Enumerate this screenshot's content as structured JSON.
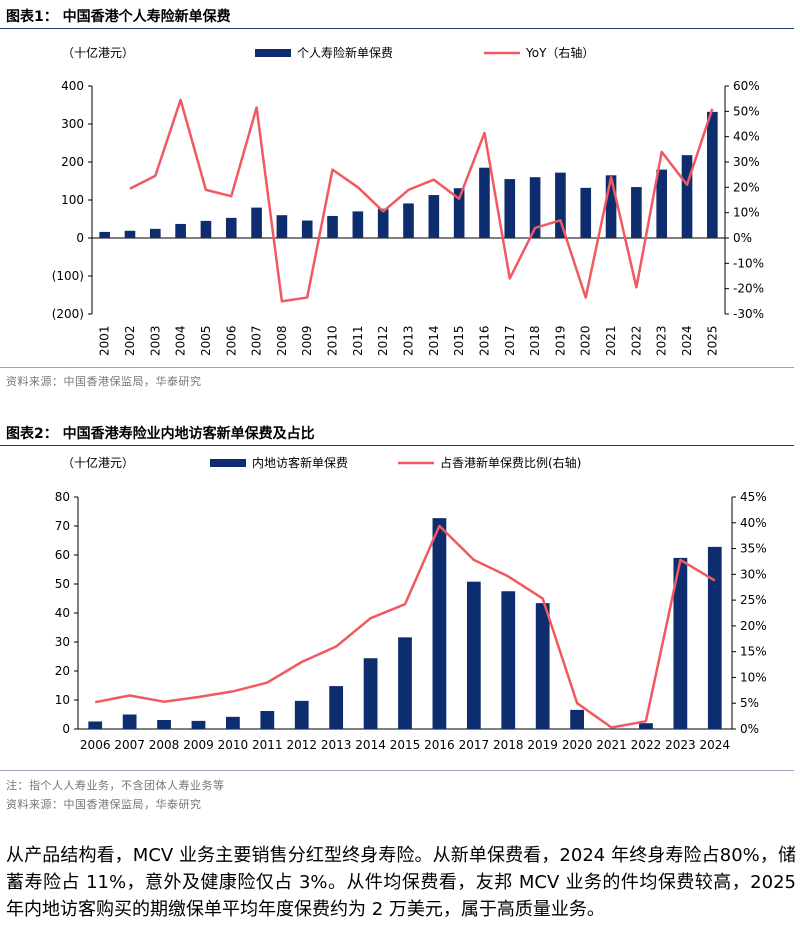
{
  "figure1": {
    "title": "图表1：  中国香港个人寿险新单保费",
    "source": "资料来源：中国香港保监局，华泰研究"
  },
  "figure2": {
    "title": "图表2：  中国香港寿险业内地访客新单保费及占比",
    "note": "注：指个人人寿业务，不含团体人寿业务等",
    "source": "资料来源：中国香港保监局，华泰研究"
  },
  "paragraph": "从产品结构看，MCV 业务主要销售分红型终身寿险。从新单保费看，2024 年终身寿险占80%，储蓄寿险占 11%，意外及健康险仅占 3%。从件均保费看，友邦 MCV 业务的件均保费较高，2025 年内地访客购买的期缴保单平均年度保费约为 2 万美元，属于高质量业务。",
  "chart_data": [
    {
      "type": "bar+line",
      "unit_label": "（十亿港元）",
      "categories": [
        "2001",
        "2002",
        "2003",
        "2004",
        "2005",
        "2006",
        "2007",
        "2008",
        "2009",
        "2010",
        "2011",
        "2012",
        "2013",
        "2014",
        "2015",
        "2016",
        "2017",
        "2018",
        "2019",
        "2020",
        "2021",
        "2022",
        "2023",
        "2024",
        "2025"
      ],
      "series": [
        {
          "name": "个人寿险新单保费",
          "kind": "bar",
          "axis": "left",
          "color": "#0d2d6e",
          "values": [
            16,
            19,
            24,
            37,
            45,
            53,
            80,
            60,
            46,
            58,
            70,
            77,
            91,
            113,
            131,
            185,
            155,
            160,
            172,
            132,
            165,
            134,
            180,
            218,
            332
          ]
        },
        {
          "name": "YoY（右轴）",
          "kind": "line",
          "axis": "right",
          "color": "#f2585f",
          "values": [
            null,
            19.5,
            24.5,
            54.5,
            19,
            16.5,
            51.5,
            -25,
            -23.5,
            27,
            20,
            10.5,
            19,
            23,
            15.5,
            41.5,
            -16,
            4,
            7,
            -23.5,
            24,
            -19.5,
            34,
            21,
            51
          ]
        }
      ],
      "yleft": {
        "min": -200,
        "max": 400,
        "ticks": [
          -200,
          -100,
          0,
          100,
          200,
          300,
          400
        ],
        "tick_labels": [
          "(200)",
          "(100)",
          "0",
          "100",
          "200",
          "300",
          "400"
        ]
      },
      "yright": {
        "min": -30,
        "max": 60,
        "ticks": [
          -30,
          -20,
          -10,
          0,
          10,
          20,
          30,
          40,
          50,
          60
        ],
        "tick_labels": [
          "-30%",
          "-20%",
          "-10%",
          "0%",
          "10%",
          "20%",
          "30%",
          "40%",
          "50%",
          "60%"
        ]
      }
    },
    {
      "type": "bar+line",
      "unit_label": "（十亿港元）",
      "categories": [
        "2006",
        "2007",
        "2008",
        "2009",
        "2010",
        "2011",
        "2012",
        "2013",
        "2014",
        "2015",
        "2016",
        "2017",
        "2018",
        "2019",
        "2020",
        "2021",
        "2022",
        "2023",
        "2024"
      ],
      "series": [
        {
          "name": "内地访客新单保费",
          "kind": "bar",
          "axis": "left",
          "color": "#0d2d6e",
          "values": [
            2.6,
            5.0,
            3.1,
            2.8,
            4.2,
            6.2,
            9.7,
            14.8,
            24.4,
            31.6,
            72.7,
            50.8,
            47.5,
            43.4,
            6.6,
            0.06,
            2.0,
            59.0,
            62.8
          ]
        },
        {
          "name": "占香港新单保费比例(右轴)",
          "kind": "line",
          "axis": "right",
          "color": "#f2585f",
          "values": [
            5.2,
            6.5,
            5.3,
            6.2,
            7.3,
            9.0,
            13.0,
            16.0,
            21.5,
            24.2,
            39.4,
            32.8,
            29.6,
            25.3,
            5.0,
            0.3,
            1.5,
            32.8,
            28.8
          ]
        }
      ],
      "yleft": {
        "min": 0,
        "max": 80,
        "ticks": [
          0,
          10,
          20,
          30,
          40,
          50,
          60,
          70,
          80
        ],
        "tick_labels": [
          "0",
          "10",
          "20",
          "30",
          "40",
          "50",
          "60",
          "70",
          "80"
        ]
      },
      "yright": {
        "min": 0,
        "max": 45,
        "ticks": [
          0,
          5,
          10,
          15,
          20,
          25,
          30,
          35,
          40,
          45
        ],
        "tick_labels": [
          "0%",
          "5%",
          "10%",
          "15%",
          "20%",
          "25%",
          "30%",
          "35%",
          "40%",
          "45%"
        ]
      }
    }
  ]
}
